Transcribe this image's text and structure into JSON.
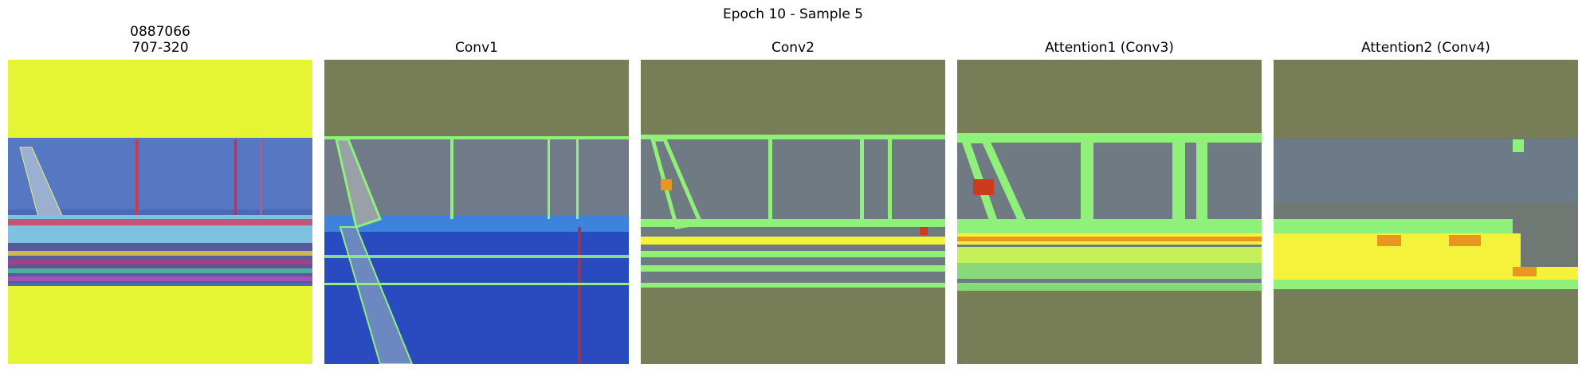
{
  "figure": {
    "title": "Epoch 10 - Sample 5"
  },
  "panels": [
    {
      "title_line1": "0887066",
      "title_line2": "707-320"
    },
    {
      "title": "Conv1"
    },
    {
      "title": "Conv2"
    },
    {
      "title": "Attention1 (Conv3)"
    },
    {
      "title": "Attention2 (Conv4)"
    }
  ],
  "colors": {
    "pad_yellow": "#e5f533",
    "olive_pad": "#767d57",
    "sky_blue": "#3f63ad",
    "deep_blue": "#1f3aa8",
    "heat_green": "#8ff07a",
    "heat_yellow": "#f4f23a",
    "heat_orange": "#e8961e",
    "heat_red": "#cc3b1e"
  }
}
